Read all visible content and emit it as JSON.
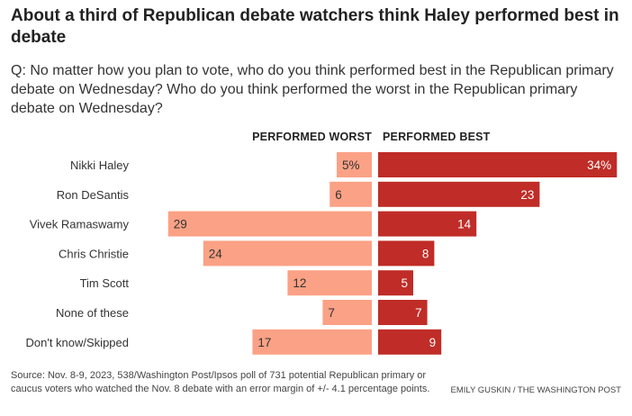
{
  "title": "About a third of Republican debate watchers think Haley performed best in debate",
  "subtitle": "Q: No matter how you plan to vote, who do you think performed best in the Republican primary debate on Wednesday? Who do you think performed the worst in the Republican primary debate on Wednesday?",
  "source": "Source: Nov. 8-9, 2023, 538/Washington Post/Ipsos poll of 731 potential Republican primary or caucus voters who watched the Nov. 8 debate with an error margin of +/- 4.1 percentage points.",
  "credit": "EMILY GUSKIN / THE WASHINGTON POST",
  "chart_data": {
    "type": "bar",
    "orientation": "horizontal-diverging",
    "categories": [
      "Nikki Haley",
      "Ron DeSantis",
      "Vivek Ramaswamy",
      "Chris Christie",
      "Tim Scott",
      "None of these",
      "Don't know/Skipped"
    ],
    "series": [
      {
        "name": "PERFORMED WORST",
        "values": [
          5,
          6,
          29,
          24,
          12,
          7,
          17
        ],
        "labels": [
          "5%",
          "6",
          "29",
          "24",
          "12",
          "7",
          "17"
        ],
        "color": "#fba185"
      },
      {
        "name": "PERFORMED BEST",
        "values": [
          34,
          23,
          14,
          8,
          5,
          7,
          9
        ],
        "labels": [
          "34%",
          "23",
          "14",
          "8",
          "5",
          "7",
          "9"
        ],
        "color": "#c02c27"
      }
    ],
    "xlim": [
      0,
      34
    ]
  }
}
